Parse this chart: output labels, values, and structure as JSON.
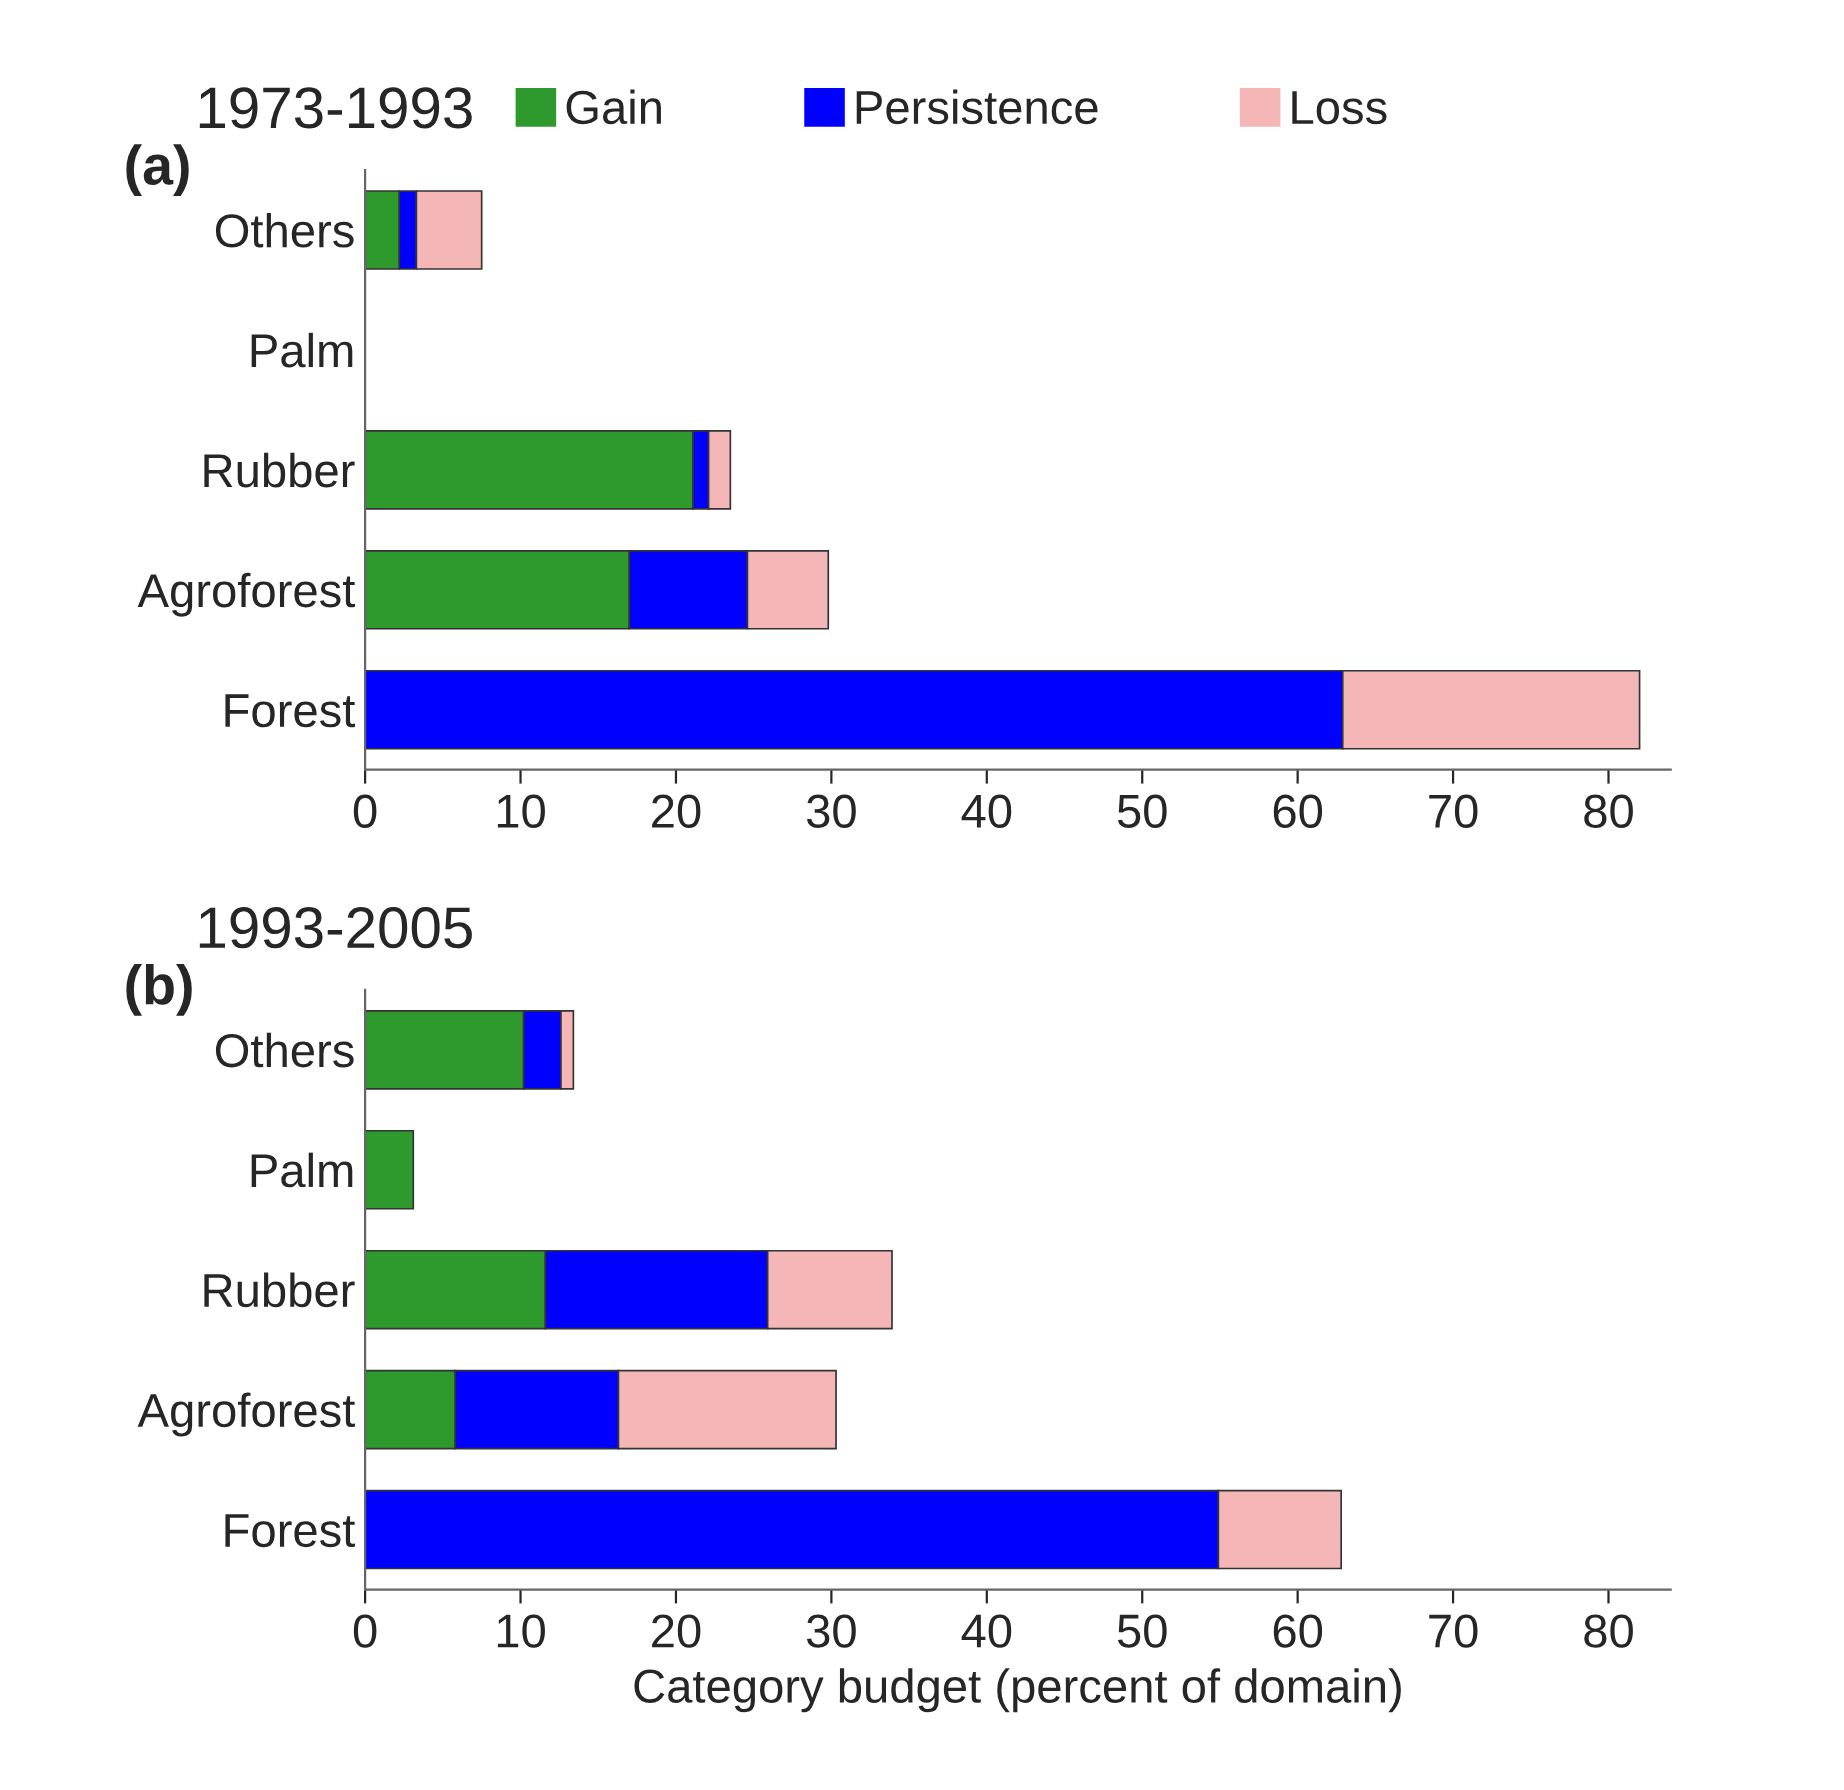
{
  "chart_data": [
    {
      "type": "bar",
      "orientation": "horizontal",
      "stacked": true,
      "title": "1973-1993",
      "annotations": [
        "(a)"
      ],
      "categories": [
        "Others",
        "Palm",
        "Rubber",
        "Agroforest",
        "Forest"
      ],
      "series": [
        {
          "name": "Gain",
          "color": "#2e9a2e",
          "values": [
            2.2,
            null,
            21.1,
            17.0,
            null
          ]
        },
        {
          "name": "Persistence",
          "color": "#0000ff",
          "values": [
            1.1,
            null,
            1.0,
            7.6,
            62.9
          ]
        },
        {
          "name": "Loss",
          "color": "#f4b6b6",
          "values": [
            4.2,
            null,
            1.4,
            5.2,
            19.1
          ]
        }
      ],
      "xlim": [
        0,
        84
      ],
      "xticks": [
        0,
        10,
        20,
        30,
        40,
        50,
        60,
        70,
        80
      ],
      "grid": false,
      "legend": "top"
    },
    {
      "type": "bar",
      "orientation": "horizontal",
      "stacked": true,
      "title": "1993-2005",
      "annotations": [
        "(b)"
      ],
      "xlabel": "Category budget (percent of domain)",
      "categories": [
        "Others",
        "Palm",
        "Rubber",
        "Agroforest",
        "Forest"
      ],
      "series": [
        {
          "color": "#2e9a2e",
          "values": [
            10.2,
            3.1,
            11.6,
            5.8,
            null
          ]
        },
        {
          "color": "#0000ff",
          "values": [
            2.4,
            null,
            14.3,
            10.5,
            54.9
          ]
        },
        {
          "color": "#f4b6b6",
          "values": [
            0.8,
            null,
            8.0,
            14.0,
            7.9
          ]
        }
      ],
      "xlim": [
        0,
        84
      ],
      "xticks": [
        0,
        10,
        20,
        30,
        40,
        50,
        60,
        70,
        80
      ],
      "grid": false,
      "legend": false
    }
  ]
}
